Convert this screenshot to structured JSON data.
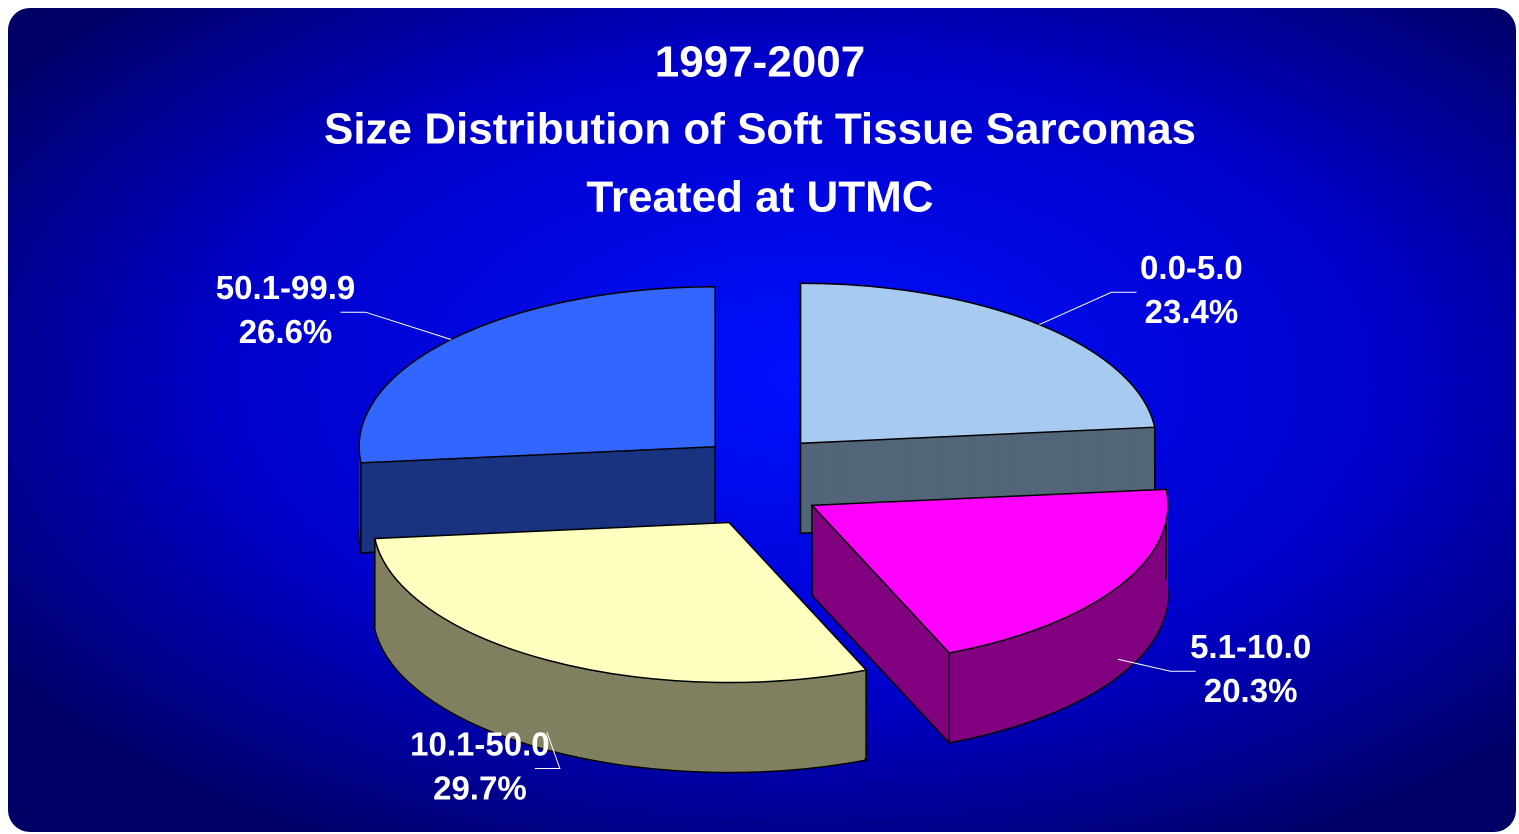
{
  "chart_data": {
    "type": "pie",
    "title": [
      "1997-2007",
      "Size Distribution of Soft Tissue Sarcomas",
      "Treated at UTMC"
    ],
    "categories": [
      "0.0-5.0",
      "5.1-10.0",
      "10.1-50.0",
      "50.1-99.9"
    ],
    "values": [
      23.4,
      20.3,
      29.7,
      26.6
    ],
    "value_labels": [
      "23.4%",
      "20.3%",
      "29.7%",
      "26.6%"
    ],
    "colors": [
      "#a6caf0",
      "#ff00ff",
      "#ffffc0",
      "#3366ff"
    ],
    "style": "3d-exploded"
  }
}
